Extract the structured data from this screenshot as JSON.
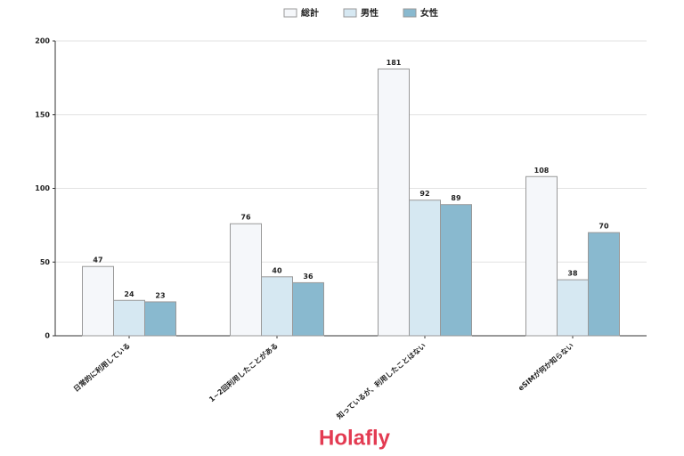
{
  "chart_data": {
    "type": "bar",
    "categories": [
      "日常的に利用している",
      "1~2回利用したことがある",
      "知っているが、利用したことはない",
      "eSIMが何か知らない"
    ],
    "series": [
      {
        "name": "総計",
        "color": "#f5f7fa",
        "values": [
          47,
          76,
          181,
          108
        ]
      },
      {
        "name": "男性",
        "color": "#d6e8f2",
        "values": [
          24,
          40,
          92,
          38
        ]
      },
      {
        "name": "女性",
        "color": "#89b9cf",
        "values": [
          23,
          36,
          89,
          70
        ]
      }
    ],
    "ylim": [
      0,
      200
    ],
    "yticks": [
      0,
      50,
      100,
      150,
      200
    ],
    "grid": true,
    "legend": "top"
  },
  "logo": "Holafly"
}
